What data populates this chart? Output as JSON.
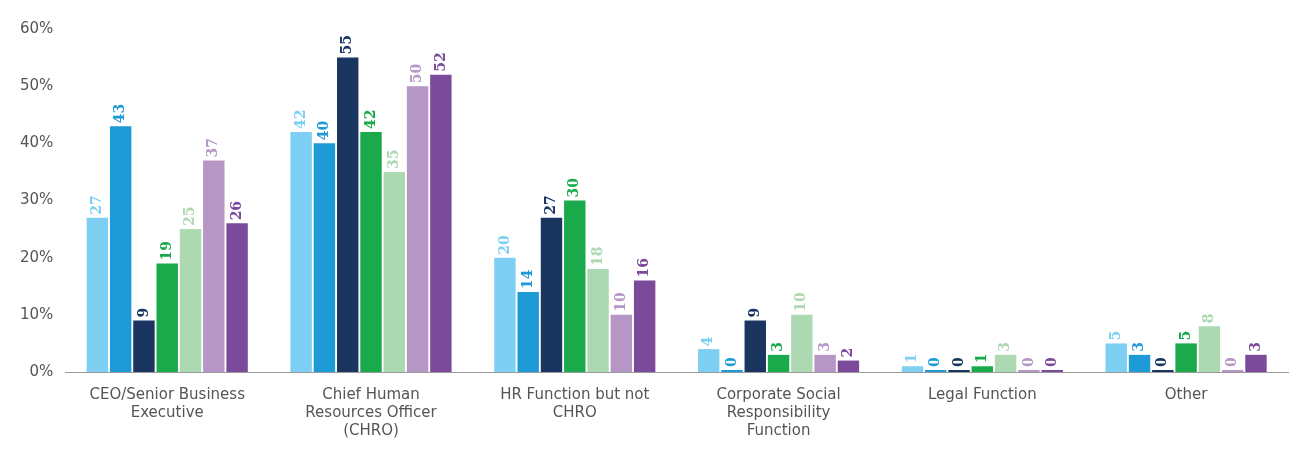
{
  "chart_data": {
    "type": "bar",
    "categories": [
      "CEO/Senior Business Executive",
      "Chief Human Resources Officer (CHRO)",
      "HR Function but not CHRO",
      "Corporate Social Responsibility Function",
      "Legal Function",
      "Other"
    ],
    "series": [
      {
        "color": "#7dd0f3",
        "values": [
          27,
          42,
          20,
          4,
          1,
          5
        ]
      },
      {
        "color": "#1e9ad6",
        "values": [
          43,
          40,
          14,
          0,
          0,
          3
        ]
      },
      {
        "color": "#1a3660",
        "values": [
          9,
          55,
          27,
          9,
          0,
          0
        ]
      },
      {
        "color": "#1aaa4b",
        "values": [
          19,
          42,
          30,
          3,
          1,
          5
        ]
      },
      {
        "color": "#acd9b1",
        "values": [
          25,
          35,
          18,
          10,
          3,
          8
        ]
      },
      {
        "color": "#b596c5",
        "values": [
          37,
          50,
          10,
          3,
          0,
          0
        ]
      },
      {
        "color": "#7b4a9b",
        "values": [
          26,
          52,
          16,
          2,
          0,
          3
        ]
      }
    ],
    "ylim": [
      0,
      60
    ],
    "yticks": [
      {
        "value": 0,
        "label": "0%"
      },
      {
        "value": 10,
        "label": "10%"
      },
      {
        "value": 20,
        "label": "20%"
      },
      {
        "value": 30,
        "label": "30%"
      },
      {
        "value": 40,
        "label": "40%"
      },
      {
        "value": 50,
        "label": "50%"
      },
      {
        "value": 60,
        "label": "60%"
      }
    ],
    "grid": false,
    "legend": false,
    "data_labels": true
  }
}
